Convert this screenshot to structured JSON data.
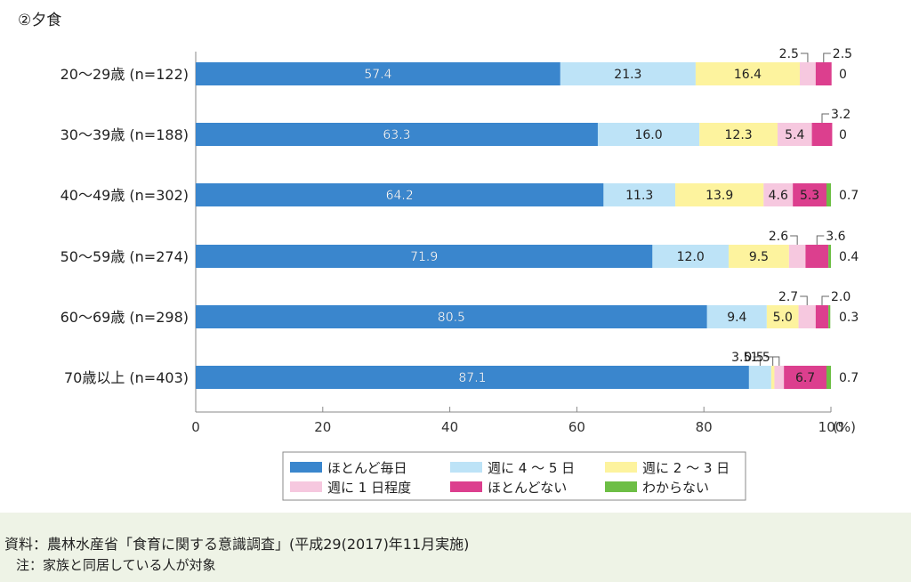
{
  "chart_data": {
    "type": "bar",
    "stacked": true,
    "orientation": "horizontal",
    "title": "②夕食",
    "categories": [
      "20～29歳 (n=122)",
      "30～39歳 (n=188)",
      "40～49歳 (n=302)",
      "50～59歳 (n=274)",
      "60～69歳 (n=298)",
      "70歳以上 (n=403)"
    ],
    "series": [
      {
        "name": "ほとんど毎日",
        "color": "#3a86cd",
        "values": [
          57.4,
          63.3,
          64.2,
          71.9,
          80.5,
          87.1
        ]
      },
      {
        "name": "週に 4 ～ 5 日",
        "color": "#bde3f7",
        "values": [
          21.3,
          16.0,
          11.3,
          12.0,
          9.4,
          3.5
        ]
      },
      {
        "name": "週に 2 ～ 3 日",
        "color": "#fdf39e",
        "values": [
          16.4,
          12.3,
          13.9,
          9.5,
          5.0,
          0.5
        ]
      },
      {
        "name": "週に 1 日程度",
        "color": "#f6c8df",
        "values": [
          2.5,
          5.4,
          4.6,
          2.6,
          2.7,
          1.5
        ]
      },
      {
        "name": "ほとんどない",
        "color": "#dc3f8e",
        "values": [
          2.5,
          3.2,
          5.3,
          3.6,
          2.0,
          6.7
        ]
      },
      {
        "name": "わからない",
        "color": "#6dbe45",
        "values": [
          0,
          0,
          0.7,
          0.4,
          0.3,
          0.7
        ]
      }
    ],
    "value_labels": [
      [
        "57.4",
        "21.3",
        "16.4",
        "2.5",
        "2.5",
        "0"
      ],
      [
        "63.3",
        "16.0",
        "12.3",
        "5.4",
        "3.2",
        "0"
      ],
      [
        "64.2",
        "11.3",
        "13.9",
        "4.6",
        "5.3",
        "0.7"
      ],
      [
        "71.9",
        "12.0",
        "9.5",
        "2.6",
        "3.6",
        "0.4"
      ],
      [
        "80.5",
        "9.4",
        "5.0",
        "2.7",
        "2.0",
        "0.3"
      ],
      [
        "87.1",
        "3.5",
        "0.5",
        "1.5",
        "6.7",
        "0.7"
      ]
    ],
    "xlim": [
      0,
      100
    ],
    "xticks": [
      "0",
      "20",
      "40",
      "60",
      "80",
      "100"
    ],
    "x_unit": "(%)",
    "legend_position": "bottom"
  },
  "footer": {
    "source": "資料：農林水産省「食育に関する意識調査」(平成29(2017)年11月実施)",
    "note": "注：家族と同居している人が対象"
  }
}
